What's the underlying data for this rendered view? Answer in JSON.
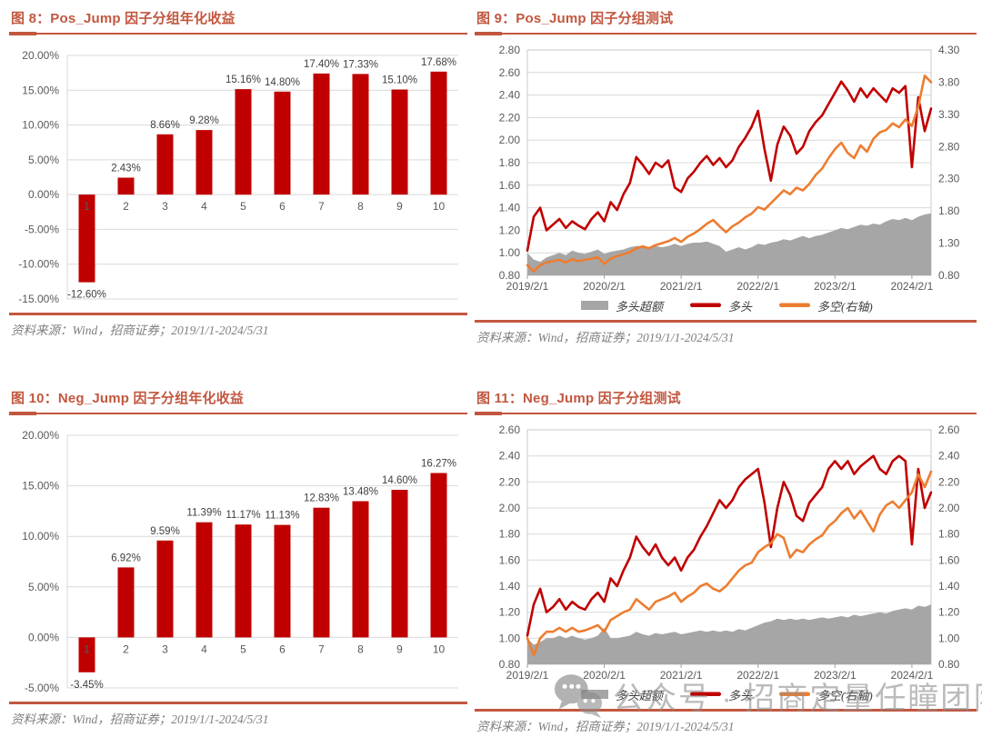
{
  "watermark": {
    "text": "公众号 · 招商定量任瞳团队"
  },
  "colors": {
    "accent": "#C2573F",
    "bar_red": "#C00000",
    "line_red": "#C00000",
    "line_orange": "#ED7D31",
    "area_gray": "#A6A6A6",
    "axis_text": "#595959",
    "grid": "#D9D9D9",
    "source_text": "#7F7F7F"
  },
  "chart_data": [
    {
      "id": "fig8",
      "type": "bar",
      "title": "图 8：Pos_Jump 因子分组年化收益",
      "source": "资料来源：Wind，招商证券；2019/1/1-2024/5/31",
      "categories": [
        "1",
        "2",
        "3",
        "4",
        "5",
        "6",
        "7",
        "8",
        "9",
        "10"
      ],
      "values": [
        -12.6,
        2.43,
        8.66,
        9.28,
        15.16,
        14.8,
        17.4,
        17.33,
        15.1,
        17.68
      ],
      "labels": [
        "-12.60%",
        "2.43%",
        "8.66%",
        "9.28%",
        "15.16%",
        "14.80%",
        "17.40%",
        "17.33%",
        "15.10%",
        "17.68%"
      ],
      "ylim": [
        -15,
        20
      ],
      "y_step": 5,
      "ylabel": "",
      "xlabel": "",
      "bar_color": "#C00000"
    },
    {
      "id": "fig9",
      "type": "line",
      "title": "图 9：Pos_Jump 因子分组测试",
      "source": "资料来源：Wind，招商证券；2019/1/1-2024/5/31",
      "x_labels": [
        "2019/2/1",
        "2020/2/1",
        "2021/2/1",
        "2022/2/1",
        "2023/2/1",
        "2024/2/1"
      ],
      "x_label_positions": [
        0,
        12,
        24,
        36,
        48,
        60
      ],
      "left_axis": {
        "min": 0.8,
        "max": 2.8,
        "step": 0.2
      },
      "right_axis": {
        "min": 0.8,
        "max": 4.3,
        "step": 0.5
      },
      "legend_position": "bottom",
      "series": [
        {
          "name": "多头超额",
          "type": "area",
          "axis": "left",
          "color": "#A6A6A6",
          "values": [
            1.0,
            0.94,
            0.92,
            0.96,
            0.98,
            1.0,
            0.98,
            1.02,
            1.0,
            0.99,
            1.01,
            1.03,
            0.99,
            1.01,
            1.02,
            1.03,
            1.05,
            1.06,
            1.06,
            1.05,
            1.06,
            1.05,
            1.06,
            1.08,
            1.06,
            1.08,
            1.09,
            1.09,
            1.1,
            1.08,
            1.06,
            1.01,
            1.03,
            1.05,
            1.03,
            1.05,
            1.08,
            1.07,
            1.09,
            1.1,
            1.12,
            1.11,
            1.13,
            1.15,
            1.13,
            1.15,
            1.16,
            1.18,
            1.2,
            1.22,
            1.21,
            1.23,
            1.25,
            1.24,
            1.26,
            1.25,
            1.28,
            1.3,
            1.29,
            1.31,
            1.29,
            1.32,
            1.34,
            1.35
          ]
        },
        {
          "name": "多头",
          "type": "line",
          "axis": "left",
          "color": "#C00000",
          "values": [
            1.02,
            1.32,
            1.4,
            1.2,
            1.25,
            1.3,
            1.22,
            1.28,
            1.24,
            1.21,
            1.3,
            1.36,
            1.28,
            1.45,
            1.38,
            1.52,
            1.62,
            1.85,
            1.78,
            1.7,
            1.8,
            1.76,
            1.82,
            1.58,
            1.54,
            1.66,
            1.72,
            1.8,
            1.86,
            1.78,
            1.84,
            1.76,
            1.82,
            1.94,
            2.02,
            2.12,
            2.26,
            1.92,
            1.64,
            1.96,
            2.12,
            2.04,
            1.88,
            1.94,
            2.08,
            2.16,
            2.22,
            2.32,
            2.42,
            2.52,
            2.44,
            2.34,
            2.46,
            2.38,
            2.46,
            2.4,
            2.34,
            2.46,
            2.42,
            2.48,
            1.76,
            2.38,
            2.08,
            2.28
          ]
        },
        {
          "name": "多空(右轴)",
          "type": "line",
          "axis": "right",
          "color": "#ED7D31",
          "values": [
            0.96,
            0.86,
            0.96,
            1.0,
            1.02,
            1.04,
            1.0,
            1.05,
            1.02,
            1.04,
            1.06,
            1.08,
            0.98,
            1.06,
            1.1,
            1.13,
            1.16,
            1.22,
            1.25,
            1.22,
            1.27,
            1.3,
            1.33,
            1.38,
            1.32,
            1.4,
            1.45,
            1.52,
            1.6,
            1.66,
            1.56,
            1.47,
            1.56,
            1.62,
            1.7,
            1.76,
            1.86,
            1.82,
            1.92,
            2.02,
            2.12,
            2.06,
            2.16,
            2.12,
            2.22,
            2.36,
            2.46,
            2.62,
            2.76,
            2.86,
            2.7,
            2.62,
            2.82,
            2.72,
            2.92,
            3.02,
            3.06,
            3.16,
            3.1,
            3.22,
            3.12,
            3.42,
            3.9,
            3.8
          ]
        }
      ]
    },
    {
      "id": "fig10",
      "type": "bar",
      "title": "图 10：Neg_Jump 因子分组年化收益",
      "source": "资料来源：Wind，招商证券；2019/1/1-2024/5/31",
      "categories": [
        "1",
        "2",
        "3",
        "4",
        "5",
        "6",
        "7",
        "8",
        "9",
        "10"
      ],
      "values": [
        -3.45,
        6.92,
        9.59,
        11.39,
        11.17,
        11.13,
        12.83,
        13.48,
        14.6,
        16.27
      ],
      "labels": [
        "-3.45%",
        "6.92%",
        "9.59%",
        "11.39%",
        "11.17%",
        "11.13%",
        "12.83%",
        "13.48%",
        "14.60%",
        "16.27%"
      ],
      "ylim": [
        -5,
        20
      ],
      "y_step": 5,
      "ylabel": "",
      "xlabel": "",
      "bar_color": "#C00000"
    },
    {
      "id": "fig11",
      "type": "line",
      "title": "图 11：Neg_Jump 因子分组测试",
      "source": "资料来源：Wind，招商证券；2019/1/1-2024/5/31",
      "x_labels": [
        "2019/2/1",
        "2020/2/1",
        "2021/2/1",
        "2022/2/1",
        "2023/2/1",
        "2024/2/1"
      ],
      "x_label_positions": [
        0,
        12,
        24,
        36,
        48,
        60
      ],
      "left_axis": {
        "min": 0.8,
        "max": 2.6,
        "step": 0.2
      },
      "right_axis": {
        "min": 0.8,
        "max": 2.6,
        "step": 0.2
      },
      "legend_position": "bottom",
      "series": [
        {
          "name": "多头超额",
          "type": "area",
          "axis": "left",
          "color": "#A6A6A6",
          "values": [
            1.0,
            0.95,
            0.97,
            1.0,
            1.0,
            1.02,
            1.0,
            1.02,
            1.0,
            0.99,
            1.0,
            1.02,
            1.08,
            1.0,
            1.0,
            1.01,
            1.02,
            1.05,
            1.03,
            1.02,
            1.04,
            1.03,
            1.04,
            1.05,
            1.03,
            1.04,
            1.05,
            1.06,
            1.05,
            1.06,
            1.05,
            1.06,
            1.05,
            1.07,
            1.06,
            1.08,
            1.1,
            1.12,
            1.13,
            1.15,
            1.14,
            1.15,
            1.14,
            1.15,
            1.14,
            1.15,
            1.16,
            1.15,
            1.16,
            1.17,
            1.16,
            1.18,
            1.17,
            1.18,
            1.19,
            1.2,
            1.19,
            1.21,
            1.22,
            1.23,
            1.22,
            1.25,
            1.24,
            1.26
          ]
        },
        {
          "name": "多头",
          "type": "line",
          "axis": "left",
          "color": "#C00000",
          "values": [
            1.02,
            1.26,
            1.38,
            1.2,
            1.24,
            1.3,
            1.22,
            1.28,
            1.24,
            1.22,
            1.3,
            1.35,
            1.28,
            1.46,
            1.4,
            1.52,
            1.62,
            1.78,
            1.7,
            1.64,
            1.72,
            1.62,
            1.56,
            1.62,
            1.52,
            1.62,
            1.68,
            1.78,
            1.86,
            1.96,
            2.06,
            2.0,
            2.06,
            2.16,
            2.22,
            2.26,
            2.3,
            2.04,
            1.7,
            2.0,
            2.2,
            2.1,
            1.94,
            1.9,
            2.04,
            2.1,
            2.16,
            2.3,
            2.36,
            2.3,
            2.36,
            2.26,
            2.32,
            2.36,
            2.4,
            2.3,
            2.26,
            2.36,
            2.4,
            2.36,
            1.72,
            2.3,
            2.0,
            2.12
          ]
        },
        {
          "name": "多空(右轴)",
          "type": "line",
          "axis": "right",
          "color": "#ED7D31",
          "values": [
            1.0,
            0.87,
            1.0,
            1.05,
            1.05,
            1.08,
            1.05,
            1.08,
            1.05,
            1.06,
            1.08,
            1.1,
            1.05,
            1.14,
            1.17,
            1.2,
            1.22,
            1.3,
            1.26,
            1.22,
            1.28,
            1.3,
            1.32,
            1.35,
            1.28,
            1.32,
            1.35,
            1.4,
            1.42,
            1.38,
            1.36,
            1.4,
            1.46,
            1.52,
            1.56,
            1.58,
            1.66,
            1.7,
            1.73,
            1.8,
            1.77,
            1.62,
            1.68,
            1.66,
            1.72,
            1.76,
            1.79,
            1.86,
            1.9,
            1.96,
            2.0,
            1.92,
            1.98,
            1.9,
            1.82,
            1.95,
            2.02,
            2.05,
            2.0,
            2.06,
            2.12,
            2.26,
            2.16,
            2.28
          ]
        }
      ]
    }
  ]
}
